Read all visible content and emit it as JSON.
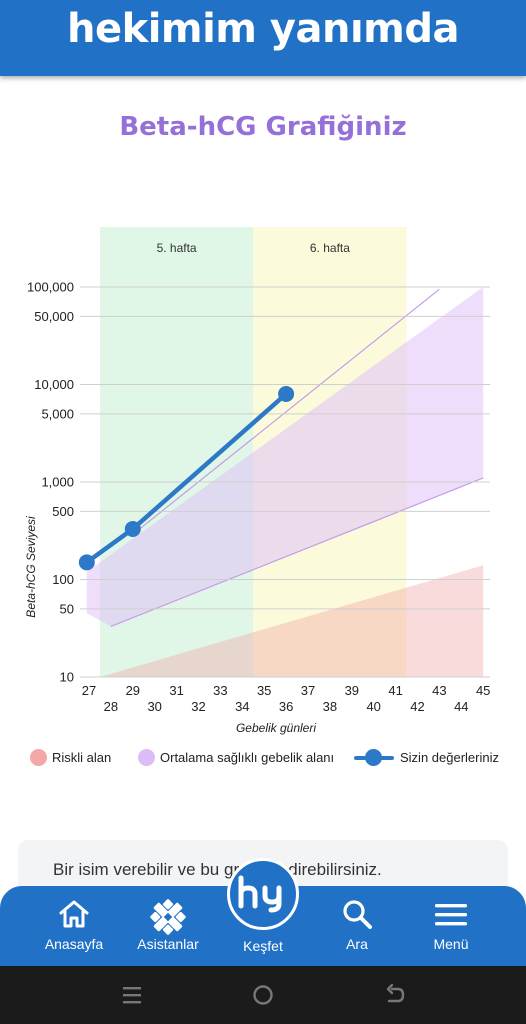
{
  "header": {
    "title": "hekimim yanımda"
  },
  "chart_title": "Beta-hCG Grafiğiniz",
  "chart_data": {
    "type": "line",
    "title": "Beta-hCG Grafiğiniz",
    "xlabel": "Gebelik günleri",
    "ylabel": "Beta-hCG Seviyesi",
    "y_scale": "log",
    "ylim": [
      10,
      100000
    ],
    "xlim": [
      26.5,
      45.2
    ],
    "x_ticks": [
      "27",
      "28",
      "29",
      "30",
      "31",
      "32",
      "33",
      "34",
      "35",
      "36",
      "37",
      "38",
      "39",
      "40",
      "41",
      "42",
      "43",
      "44",
      "45"
    ],
    "y_ticks": [
      "10",
      "50",
      "100",
      "500",
      "1,000",
      "5,000",
      "10,000",
      "50,000",
      "100,000"
    ],
    "week_bands": [
      {
        "label": "5. hafta",
        "from": 27.5,
        "to": 34.5,
        "color": "#d8f5e2"
      },
      {
        "label": "6. hafta",
        "from": 34.5,
        "to": 41.5,
        "color": "#fafad2"
      }
    ],
    "zones": [
      {
        "name": "Riskli alan",
        "color": "#f3a5a5",
        "lower": [
          [
            27.5,
            10
          ],
          [
            45,
            10
          ]
        ],
        "upper": [
          [
            27.5,
            10
          ],
          [
            45,
            140
          ]
        ]
      },
      {
        "name": "Ortalama sağlıklı gebelik alanı",
        "color": "#e0c3f7",
        "lower": [
          [
            26.9,
            45
          ],
          [
            28,
            33
          ],
          [
            45,
            1100
          ]
        ],
        "upper": [
          [
            26.9,
            120
          ],
          [
            45,
            100000
          ]
        ]
      }
    ],
    "series": [
      {
        "name": "Sizin değerleriniz",
        "color": "#2e78c8",
        "x": [
          26.9,
          29,
          36
        ],
        "y": [
          150,
          330,
          8000
        ]
      }
    ],
    "legend_position": "bottom"
  },
  "legend": {
    "items": [
      {
        "label": "Riskli alan",
        "color": "#f4a7a7"
      },
      {
        "label": "Ortalama sağlıklı gebelik alanı",
        "color": "#dcbcf6"
      },
      {
        "label": "Sizin değerleriniz",
        "color": "#2e78c8"
      }
    ]
  },
  "info_card": {
    "text": "Bir isim verebilir ve bu grafiği indirebilirsiniz."
  },
  "bottom_nav": {
    "items": [
      {
        "label": "Anasayfa",
        "icon": "home-icon"
      },
      {
        "label": "Asistanlar",
        "icon": "assistants-icon"
      },
      {
        "label": "Keşfet",
        "icon": "hy-logo-icon"
      },
      {
        "label": "Ara",
        "icon": "search-icon"
      },
      {
        "label": "Menü",
        "icon": "menu-icon"
      }
    ]
  },
  "colors": {
    "brand": "#2172c6",
    "title_purple": "#9570d8",
    "series_blue": "#2e78c8"
  }
}
